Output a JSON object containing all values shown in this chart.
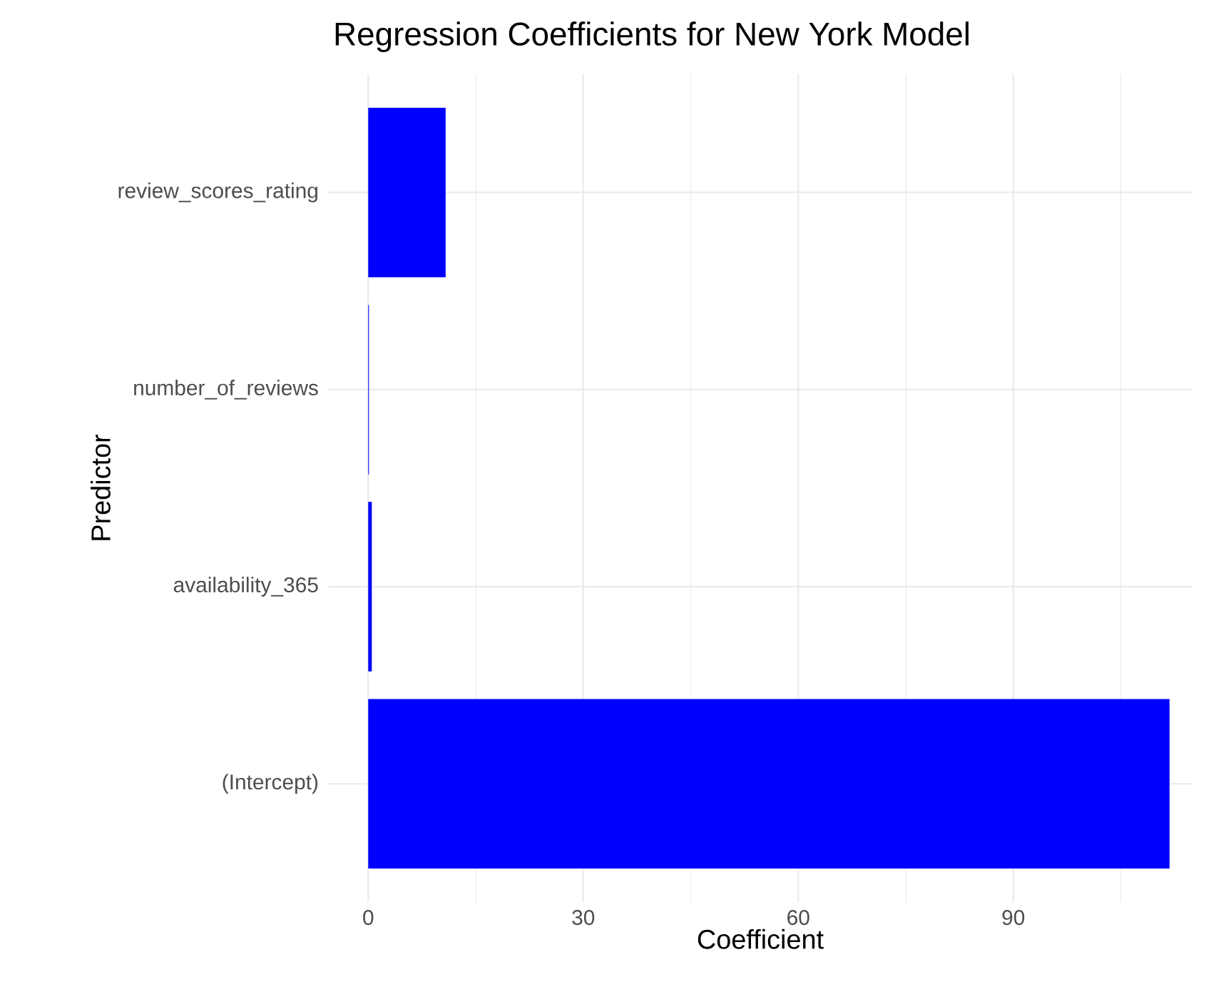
{
  "chart_data": {
    "type": "bar",
    "orientation": "horizontal",
    "title": "Regression Coefficients for New York Model",
    "xlabel": "Coefficient",
    "ylabel": "Predictor",
    "categories": [
      "review_scores_rating",
      "number_of_reviews",
      "availability_365",
      "(Intercept)"
    ],
    "values": [
      10.8,
      0.1,
      0.5,
      111.8
    ],
    "color": "#0000ff",
    "xlim": [
      -5.6,
      115
    ],
    "xticks": [
      0,
      30,
      60,
      90
    ],
    "grid": true
  }
}
